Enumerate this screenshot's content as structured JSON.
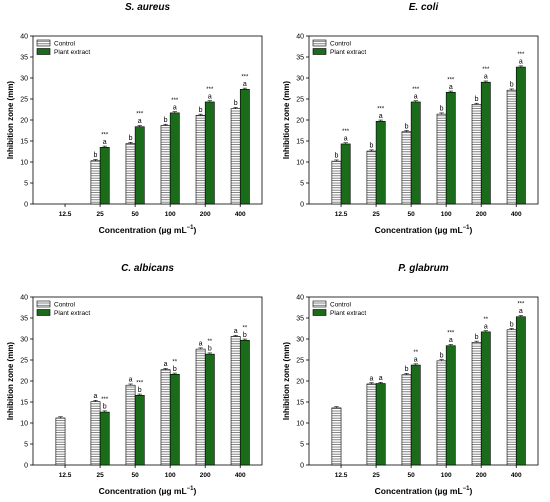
{
  "legend": {
    "control_label": "Control",
    "extract_label": "Plant extract"
  },
  "colors": {
    "extract_fill": "#1a6b1a",
    "control_fill": "#ffffff",
    "stroke": "#000000",
    "hatch": "#555555"
  },
  "chart_data": [
    {
      "type": "bar",
      "title": "S. aureus",
      "xlabel": "Concentration (µg mL",
      "xlabel_sup": "−1",
      "xlabel_end": ")",
      "ylabel": "Inhibition zone (mm)",
      "ylim": [
        0,
        40
      ],
      "yticks": [
        "0",
        "5",
        "10",
        "15",
        "20",
        "25",
        "30",
        "35",
        "40"
      ],
      "categories": [
        "12.5",
        "25",
        "50",
        "100",
        "200",
        "400"
      ],
      "legend_position": "top-left",
      "series": [
        {
          "name": "Control",
          "values": [
            null,
            10.3,
            14.4,
            18.7,
            21.1,
            22.7
          ],
          "labels": [
            "",
            "b",
            "b",
            "b",
            "b",
            "b"
          ]
        },
        {
          "name": "Plant extract",
          "values": [
            null,
            13.5,
            18.4,
            21.7,
            24.3,
            27.3
          ],
          "labels": [
            "",
            "a",
            "a",
            "a",
            "a",
            "a"
          ],
          "stars": [
            "",
            "***",
            "***",
            "***",
            "***",
            "***"
          ]
        }
      ]
    },
    {
      "type": "bar",
      "title": "E. coli",
      "xlabel": "Concentration (µg mL",
      "xlabel_sup": "−1",
      "xlabel_end": ")",
      "ylabel": "Inhibition zone (mm)",
      "ylim": [
        0,
        40
      ],
      "yticks": [
        "0",
        "5",
        "10",
        "15",
        "20",
        "25",
        "30",
        "35",
        "40"
      ],
      "categories": [
        "12.5",
        "25",
        "50",
        "100",
        "200",
        "400"
      ],
      "legend_position": "top-left",
      "series": [
        {
          "name": "Control",
          "values": [
            10.2,
            12.6,
            17.2,
            21.4,
            23.7,
            27.1
          ],
          "labels": [
            "b",
            "b",
            "b",
            "b",
            "b",
            "b"
          ]
        },
        {
          "name": "Plant extract",
          "values": [
            14.3,
            19.7,
            24.3,
            26.6,
            29.0,
            32.6
          ],
          "labels": [
            "a",
            "a",
            "a",
            "a",
            "a",
            "a"
          ],
          "stars": [
            "***",
            "***",
            "***",
            "***",
            "***",
            "***"
          ]
        }
      ]
    },
    {
      "type": "bar",
      "title": "C. albicans",
      "xlabel": "Concentration (µg mL",
      "xlabel_sup": "−1",
      "xlabel_end": ")",
      "ylabel": "Inhibition zone (mm)",
      "ylim": [
        0,
        40
      ],
      "yticks": [
        "0",
        "5",
        "10",
        "15",
        "20",
        "25",
        "30",
        "35",
        "40"
      ],
      "categories": [
        "12.5",
        "25",
        "50",
        "100",
        "200",
        "400"
      ],
      "legend_position": "top-left",
      "series": [
        {
          "name": "Control",
          "values": [
            11.2,
            15.1,
            19.0,
            22.7,
            27.6,
            30.6
          ],
          "labels": [
            "",
            "a",
            "a",
            "a",
            "a",
            "a"
          ]
        },
        {
          "name": "Plant extract",
          "values": [
            null,
            12.6,
            16.6,
            21.6,
            26.4,
            29.7
          ],
          "labels": [
            "",
            "b",
            "b",
            "b",
            "b",
            "b"
          ],
          "stars": [
            "",
            "***",
            "***",
            "**",
            "**",
            "**"
          ]
        }
      ]
    },
    {
      "type": "bar",
      "title": "P. glabrum",
      "xlabel": "Concentration (µg mL",
      "xlabel_sup": "−1",
      "xlabel_end": ")",
      "ylabel": "Inhibition zone (mm)",
      "ylim": [
        0,
        40
      ],
      "yticks": [
        "0",
        "5",
        "10",
        "15",
        "20",
        "25",
        "30",
        "35",
        "40"
      ],
      "categories": [
        "12.5",
        "25",
        "50",
        "100",
        "200",
        "400"
      ],
      "legend_position": "top-left",
      "series": [
        {
          "name": "Control",
          "values": [
            13.6,
            19.3,
            21.5,
            24.8,
            29.2,
            32.2
          ],
          "labels": [
            "",
            "a",
            "b",
            "b",
            "b",
            "b"
          ]
        },
        {
          "name": "Plant extract",
          "values": [
            null,
            19.4,
            23.8,
            28.4,
            31.7,
            35.3
          ],
          "labels": [
            "",
            "a",
            "a",
            "a",
            "a",
            "a"
          ],
          "stars": [
            "",
            "",
            "**",
            "***",
            "**",
            "***"
          ]
        }
      ]
    }
  ]
}
